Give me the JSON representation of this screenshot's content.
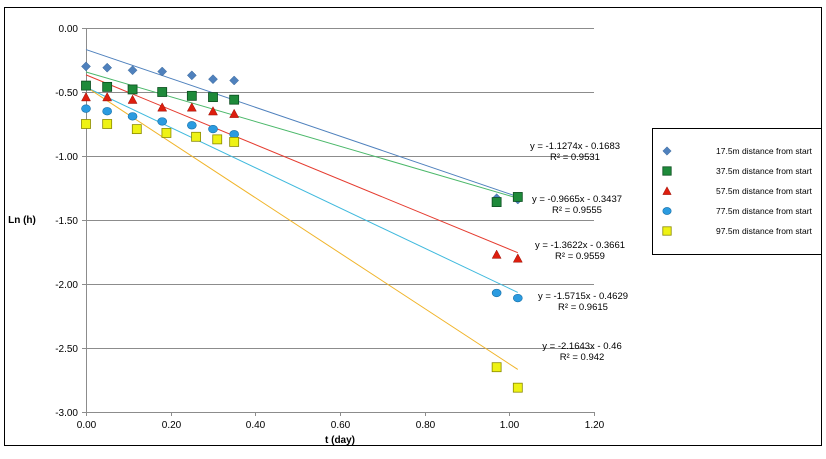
{
  "chart_data": {
    "type": "scatter",
    "title": "",
    "xlabel": "t (day)",
    "ylabel": "Ln (h)",
    "xlim": [
      0,
      1.2
    ],
    "ylim": [
      -3.0,
      0.0
    ],
    "xticks": [
      0,
      0.2,
      0.4,
      0.6,
      0.8,
      1.0,
      1.2
    ],
    "xtick_labels": [
      "0.00",
      "0.20",
      "0.40",
      "0.60",
      "0.80",
      "1.00",
      "1.20"
    ],
    "yticks": [
      0,
      -0.5,
      -1.0,
      -1.5,
      -2.0,
      -2.5,
      -3.0
    ],
    "ytick_labels": [
      "0.00",
      "-0.50",
      "-1.00",
      "-1.50",
      "-2.00",
      "-2.50",
      "-3.00"
    ],
    "grid": "horizontal",
    "legend_position": "right",
    "series": [
      {
        "name": "17.5m distance  from  start",
        "marker": "diamond",
        "color": "#4f81bd",
        "trend_color": "#4f81bd",
        "x": [
          0.0,
          0.05,
          0.11,
          0.18,
          0.25,
          0.3,
          0.35,
          0.97,
          1.02
        ],
        "y": [
          -0.3,
          -0.31,
          -0.33,
          -0.34,
          -0.37,
          -0.4,
          -0.41,
          -1.33,
          -1.34
        ],
        "trend": {
          "slope": -1.1274,
          "intercept": -0.1683,
          "x_range": [
            0,
            1.02
          ]
        },
        "equation": "y = -1.1274x - 0.1683",
        "r2": "R² = 0.9531"
      },
      {
        "name": "37.5m distance  from  start",
        "marker": "square",
        "color": "#1e8a3a",
        "trend_color": "#4bb86a",
        "x": [
          0.0,
          0.05,
          0.11,
          0.18,
          0.25,
          0.3,
          0.35,
          0.97,
          1.02
        ],
        "y": [
          -0.45,
          -0.46,
          -0.48,
          -0.5,
          -0.53,
          -0.54,
          -0.56,
          -1.36,
          -1.32
        ],
        "trend": {
          "slope": -0.9665,
          "intercept": -0.3437,
          "x_range": [
            0,
            1.02
          ]
        },
        "equation": "y = -0.9665x - 0.3437",
        "r2": "R² = 0.9555"
      },
      {
        "name": "57.5m distance  from  start",
        "marker": "triangle",
        "color": "#dd1e0e",
        "trend_color": "#e53c30",
        "x": [
          0.0,
          0.05,
          0.11,
          0.18,
          0.25,
          0.3,
          0.35,
          0.97,
          1.02
        ],
        "y": [
          -0.54,
          -0.54,
          -0.56,
          -0.62,
          -0.62,
          -0.65,
          -0.67,
          -1.77,
          -1.8
        ],
        "trend": {
          "slope": -1.3622,
          "intercept": -0.3661,
          "x_range": [
            0,
            1.02
          ]
        },
        "equation": "y = -1.3622x - 0.3661",
        "r2": "R² = 0.9559"
      },
      {
        "name": "77.5m distance  from  start",
        "marker": "circle",
        "color": "#2b9be0",
        "trend_color": "#3fb9dd",
        "x": [
          0.0,
          0.05,
          0.11,
          0.18,
          0.25,
          0.3,
          0.35,
          0.97,
          1.02
        ],
        "y": [
          -0.63,
          -0.65,
          -0.69,
          -0.73,
          -0.76,
          -0.79,
          -0.83,
          -2.07,
          -2.11
        ],
        "trend": {
          "slope": -1.5715,
          "intercept": -0.4629,
          "x_range": [
            0,
            1.02
          ]
        },
        "equation": "y = -1.5715x - 0.4629",
        "r2": "R² = 0.9615"
      },
      {
        "name": "97.5m distance  from  start",
        "marker": "square",
        "color": "#eef214",
        "trend_color": "#f0b429",
        "x": [
          0.0,
          0.05,
          0.12,
          0.19,
          0.26,
          0.31,
          0.35,
          0.97,
          1.02
        ],
        "y": [
          -0.75,
          -0.75,
          -0.79,
          -0.82,
          -0.85,
          -0.87,
          -0.89,
          -2.65,
          -2.81
        ],
        "trend": {
          "slope": -2.1643,
          "intercept": -0.46,
          "x_range": [
            0,
            1.02
          ]
        },
        "equation": "y = -2.1643x - 0.46",
        "r2": "R² = 0.942"
      }
    ]
  }
}
